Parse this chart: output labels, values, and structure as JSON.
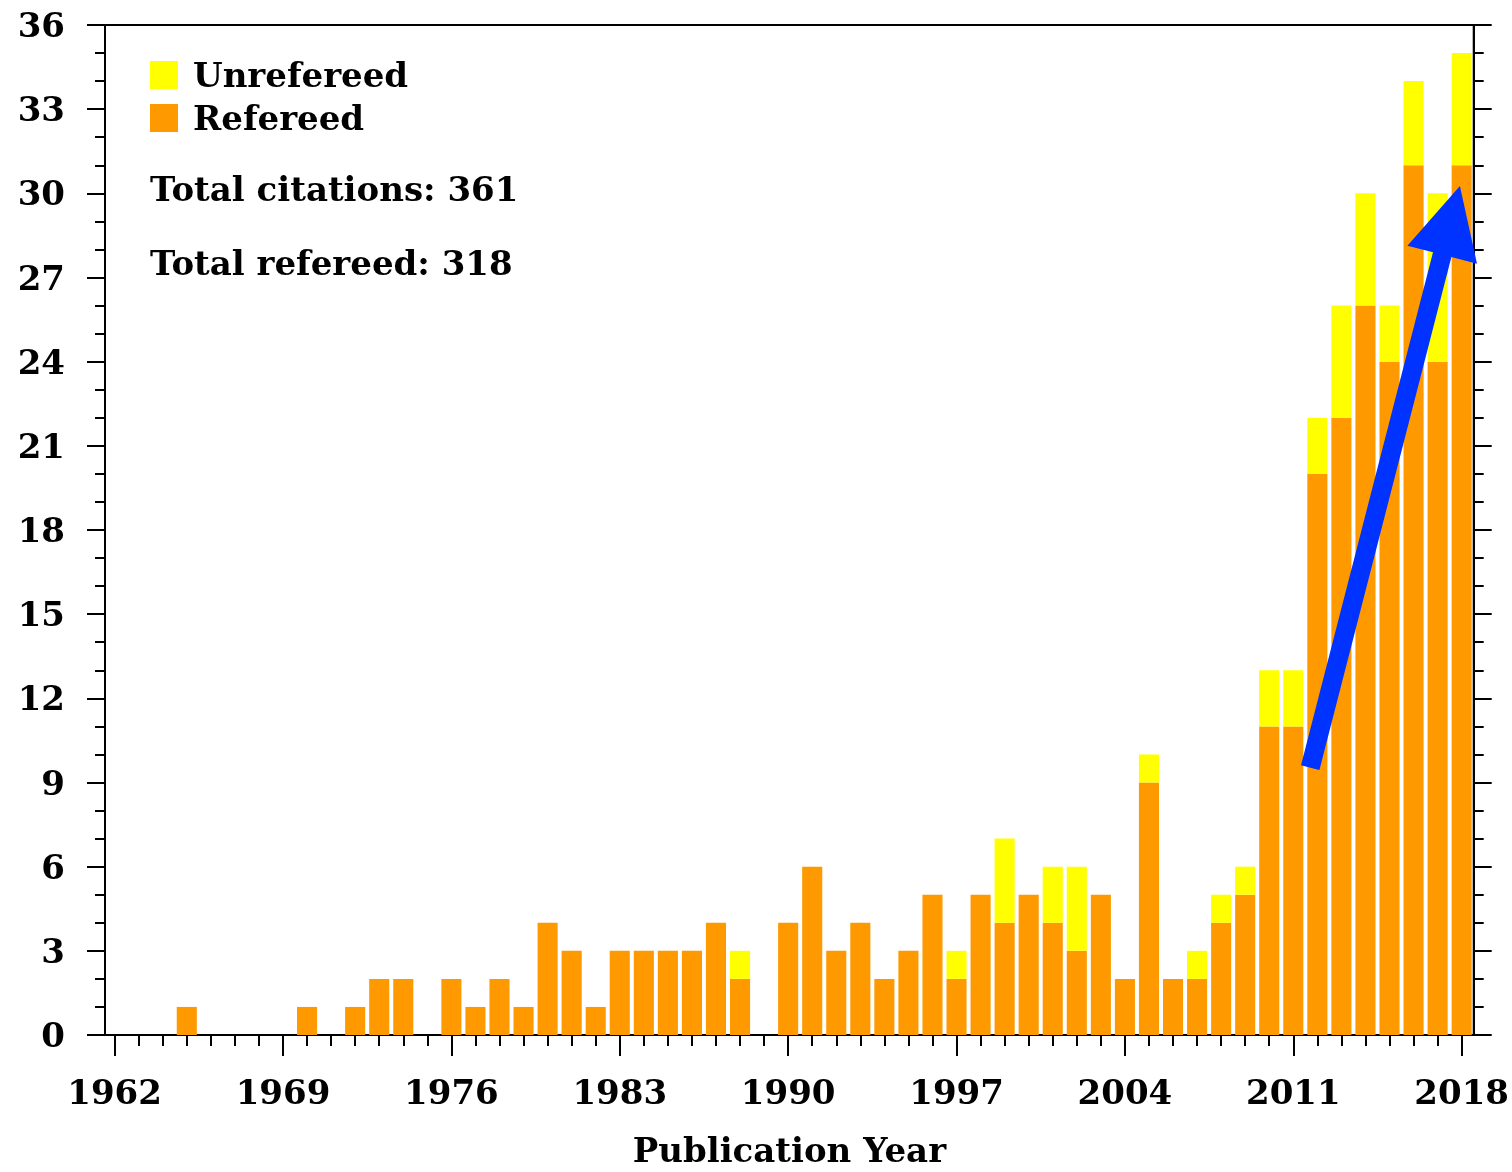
{
  "chart_data": {
    "type": "bar",
    "xlabel": "Publication Year",
    "x": [
      1965,
      1970,
      1972,
      1973,
      1974,
      1976,
      1977,
      1978,
      1979,
      1980,
      1981,
      1982,
      1983,
      1984,
      1985,
      1986,
      1987,
      1988,
      1990,
      1991,
      1992,
      1993,
      1994,
      1995,
      1996,
      1997,
      1998,
      1999,
      2000,
      2001,
      2002,
      2003,
      2004,
      2005,
      2006,
      2007,
      2008,
      2009,
      2010,
      2011,
      2012,
      2013,
      2014,
      2015,
      2016,
      2017,
      2018
    ],
    "series": [
      {
        "name": "Refereed",
        "color": "#ff9900",
        "values": [
          1,
          1,
          1,
          2,
          2,
          2,
          1,
          2,
          1,
          4,
          3,
          1,
          3,
          3,
          3,
          3,
          4,
          2,
          4,
          6,
          3,
          4,
          2,
          3,
          5,
          2,
          5,
          4,
          5,
          4,
          3,
          5,
          2,
          9,
          2,
          2,
          4,
          5,
          11,
          11,
          20,
          22,
          26,
          24,
          31,
          24,
          31
        ]
      },
      {
        "name": "Unrefereed",
        "color": "#ffff00",
        "values": [
          null,
          null,
          null,
          null,
          null,
          null,
          null,
          null,
          null,
          null,
          null,
          null,
          null,
          null,
          null,
          null,
          null,
          1,
          null,
          null,
          null,
          null,
          null,
          null,
          null,
          1,
          null,
          3,
          null,
          2,
          3,
          null,
          null,
          1,
          null,
          1,
          1,
          1,
          2,
          2,
          2,
          4,
          4,
          2,
          3,
          6,
          4
        ]
      }
    ],
    "stacked": true,
    "xlim": [
      1961.6,
      2018.5
    ],
    "xticks": [
      1962,
      {
        "value": 1963,
        "label": null
      },
      {
        "value": 1964,
        "label": null
      },
      {
        "value": 1965,
        "label": null
      },
      {
        "value": 1966,
        "label": null
      },
      {
        "value": 1967,
        "label": null
      },
      {
        "value": 1968,
        "label": null
      },
      1969,
      {
        "value": 1970,
        "label": null
      },
      {
        "value": 1971,
        "label": null
      },
      {
        "value": 1972,
        "label": null
      },
      {
        "value": 1973,
        "label": null
      },
      {
        "value": 1974,
        "label": null
      },
      {
        "value": 1975,
        "label": null
      },
      1976,
      {
        "value": 1977,
        "label": null
      },
      {
        "value": 1978,
        "label": null
      },
      {
        "value": 1979,
        "label": null
      },
      {
        "value": 1980,
        "label": null
      },
      {
        "value": 1981,
        "label": null
      },
      {
        "value": 1982,
        "label": null
      },
      1983,
      {
        "value": 1984,
        "label": null
      },
      {
        "value": 1985,
        "label": null
      },
      {
        "value": 1986,
        "label": null
      },
      {
        "value": 1987,
        "label": null
      },
      {
        "value": 1988,
        "label": null
      },
      {
        "value": 1989,
        "label": null
      },
      1990,
      {
        "value": 1991,
        "label": null
      },
      {
        "value": 1992,
        "label": null
      },
      {
        "value": 1993,
        "label": null
      },
      {
        "value": 1994,
        "label": null
      },
      {
        "value": 1995,
        "label": null
      },
      {
        "value": 1996,
        "label": null
      },
      1997,
      {
        "value": 1998,
        "label": null
      },
      {
        "value": 1999,
        "label": null
      },
      {
        "value": 2000,
        "label": null
      },
      {
        "value": 2001,
        "label": null
      },
      {
        "value": 2002,
        "label": null
      },
      {
        "value": 2003,
        "label": null
      },
      2004,
      {
        "value": 2005,
        "label": null
      },
      {
        "value": 2006,
        "label": null
      },
      {
        "value": 2007,
        "label": null
      },
      {
        "value": 2008,
        "label": null
      },
      {
        "value": 2009,
        "label": null
      },
      {
        "value": 2010,
        "label": null
      },
      2011,
      {
        "value": 2012,
        "label": null
      },
      {
        "value": 2013,
        "label": null
      },
      {
        "value": 2014,
        "label": null
      },
      {
        "value": 2015,
        "label": null
      },
      {
        "value": 2016,
        "label": null
      },
      {
        "value": 2017,
        "label": null
      },
      2018
    ],
    "ylim": [
      0,
      36
    ],
    "yticks": [
      0,
      {
        "value": 1,
        "label": null
      },
      {
        "value": 2,
        "label": null
      },
      3,
      {
        "value": 4,
        "label": null
      },
      {
        "value": 5,
        "label": null
      },
      6,
      {
        "value": 7,
        "label": null
      },
      {
        "value": 8,
        "label": null
      },
      9,
      {
        "value": 10,
        "label": null
      },
      {
        "value": 11,
        "label": null
      },
      12,
      {
        "value": 13,
        "label": null
      },
      {
        "value": 14,
        "label": null
      },
      15,
      {
        "value": 16,
        "label": null
      },
      {
        "value": 17,
        "label": null
      },
      18,
      {
        "value": 19,
        "label": null
      },
      {
        "value": 20,
        "label": null
      },
      21,
      {
        "value": 22,
        "label": null
      },
      {
        "value": 23,
        "label": null
      },
      24,
      {
        "value": 25,
        "label": null
      },
      {
        "value": 26,
        "label": null
      },
      27,
      {
        "value": 28,
        "label": null
      },
      {
        "value": 29,
        "label": null
      },
      30,
      {
        "value": 31,
        "label": null
      },
      {
        "value": 32,
        "label": null
      },
      33,
      {
        "value": 34,
        "label": null
      },
      {
        "value": 35,
        "label": null
      },
      36
    ],
    "grid": false,
    "legend": "top left",
    "annotations": [
      "Total citations: 361",
      "Total refereed: 318"
    ]
  }
}
